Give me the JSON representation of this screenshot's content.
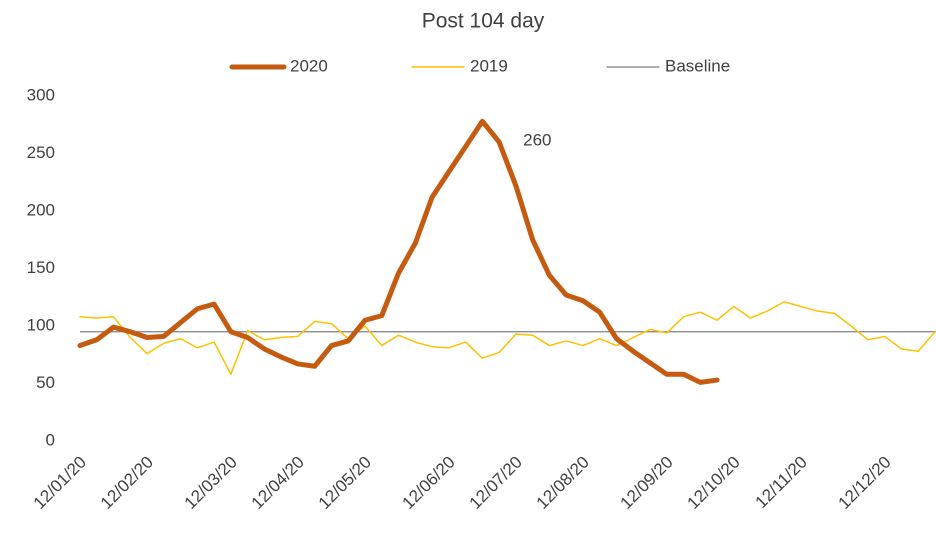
{
  "chart_data": {
    "type": "line",
    "title": "Post 104  day",
    "categories": [
      "12/01/20",
      null,
      null,
      null,
      "12/02/20",
      null,
      null,
      null,
      null,
      "12/03/20",
      null,
      null,
      null,
      "12/04/20",
      null,
      null,
      null,
      "12/05/20",
      null,
      null,
      null,
      null,
      "12/06/20",
      null,
      null,
      null,
      "12/07/20",
      null,
      null,
      null,
      "12/08/20",
      null,
      null,
      null,
      null,
      "12/09/20",
      null,
      null,
      null,
      "12/10/20",
      null,
      null,
      null,
      "12/11/20",
      null,
      null,
      null,
      null,
      "12/12/20",
      null,
      null,
      null
    ],
    "series": [
      {
        "name": "2020",
        "color": "#c55a11",
        "width": 5,
        "values": [
          83,
          88,
          99,
          95,
          90,
          91,
          103,
          115,
          119,
          95,
          90,
          80,
          73,
          67,
          65,
          83,
          87,
          105,
          109,
          146,
          172,
          212,
          234,
          256,
          278,
          260,
          222,
          175,
          144,
          127,
          122,
          112,
          89,
          78,
          68,
          58,
          58,
          51,
          53,
          null,
          null,
          null,
          null,
          null,
          null,
          null,
          null,
          null,
          null,
          null,
          null,
          null
        ]
      },
      {
        "name": "2019",
        "color": "#ffc000",
        "width": 1.5,
        "values": [
          108,
          107,
          108,
          90,
          76,
          85,
          89,
          81,
          86,
          58,
          96,
          88,
          90,
          91,
          104,
          102,
          89,
          100,
          83,
          92,
          86,
          82,
          81,
          86,
          72,
          77,
          93,
          92,
          83,
          87,
          83,
          89,
          83,
          90,
          97,
          94,
          108,
          112,
          105,
          117,
          107,
          113,
          121,
          117,
          113,
          111,
          100,
          88,
          91,
          80,
          78,
          95
        ]
      },
      {
        "name": "Baseline",
        "color": "#7f7f7f",
        "width": 1.3,
        "value": 95
      }
    ],
    "annotations": [
      {
        "text": "260",
        "series": 0,
        "index": 25
      }
    ],
    "ylim": [
      0,
      300
    ],
    "yticks": [
      0,
      50,
      100,
      150,
      200,
      250,
      300
    ],
    "grid": false,
    "legend": "top"
  }
}
